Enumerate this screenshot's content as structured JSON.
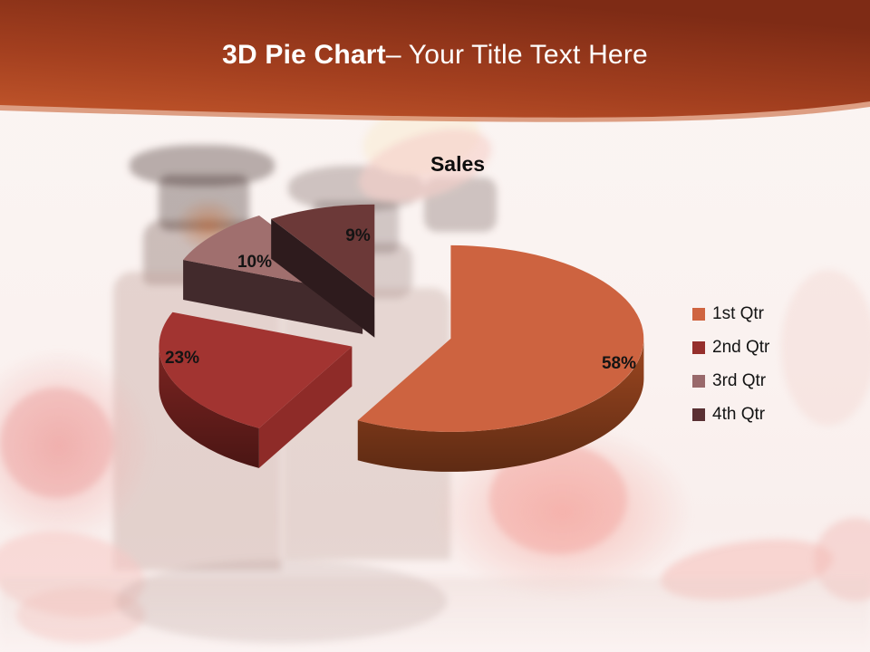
{
  "header": {
    "title_bold": "3D Pie Chart",
    "title_rest": "– Your Title Text Here"
  },
  "chart_data": {
    "type": "pie",
    "style": "3d-exploded",
    "title": "Sales",
    "categories": [
      "1st Qtr",
      "2nd Qtr",
      "3rd Qtr",
      "4th Qtr"
    ],
    "values": [
      58,
      23,
      10,
      9
    ],
    "labels_unit": "%",
    "legend_position": "right",
    "slice_colors_top": [
      "#cd6340",
      "#a23431",
      "#a06f6e",
      "#6c3938"
    ],
    "slice_colors_side": [
      "#9d4720",
      "#7c2421",
      "#6b4a49",
      "#4a2a2b"
    ],
    "slice_colors_cut": [
      "#b3522a",
      "#8e2b28",
      "#422a2c",
      "#2e1b1d"
    ],
    "legend_colors": [
      "#cf6440",
      "#952f2c",
      "#99696b",
      "#5a3033"
    ]
  },
  "colors": {
    "header_gradient_light": "#c2562b",
    "header_gradient_mid": "#a33f1f",
    "header_gradient_dark": "#7e2b15",
    "header_edge_wave": "#c96438",
    "background": "#faf2f0",
    "label_text": "#141414"
  }
}
